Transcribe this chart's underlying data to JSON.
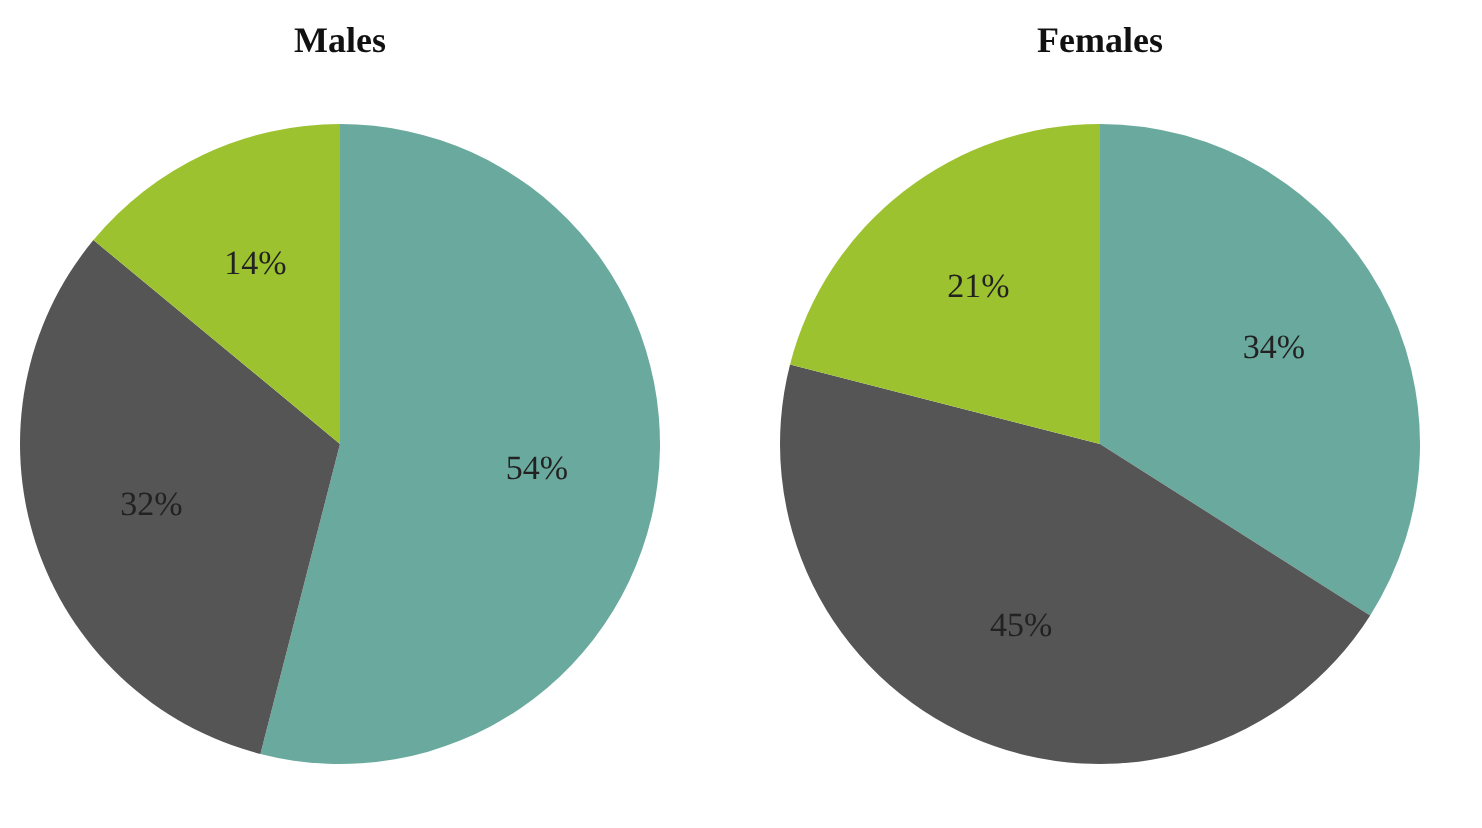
{
  "chart_data": [
    {
      "type": "pie",
      "title": "Males",
      "categories": [
        null,
        null,
        null
      ],
      "values": [
        54,
        32,
        14
      ],
      "colors": [
        "#6aaa9e",
        "#555555",
        "#9dc22f"
      ],
      "value_labels": [
        "54%",
        "32%",
        "14%"
      ]
    },
    {
      "type": "pie",
      "title": "Females",
      "categories": [
        null,
        null,
        null
      ],
      "values": [
        34,
        45,
        21
      ],
      "colors": [
        "#6aaa9e",
        "#555555",
        "#9dc22f"
      ],
      "value_labels": [
        "34%",
        "45%",
        "21%"
      ]
    }
  ]
}
